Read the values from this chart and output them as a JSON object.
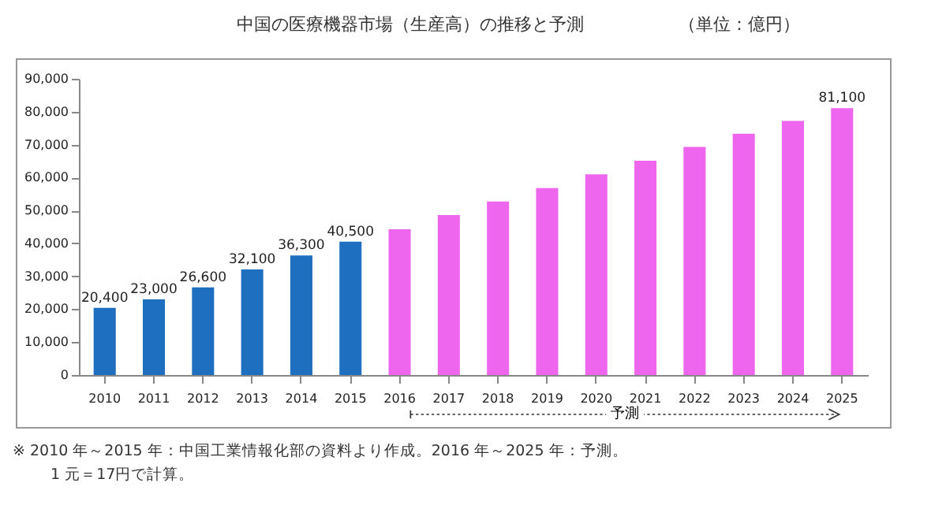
{
  "chart_data": {
    "type": "bar",
    "title": "中国の医療機器市場（生産高）の推移と予測",
    "subtitle": "（単位：億円）",
    "categories": [
      "2010",
      "2011",
      "2012",
      "2013",
      "2014",
      "2015",
      "2016",
      "2017",
      "2018",
      "2019",
      "2020",
      "2021",
      "2022",
      "2023",
      "2024",
      "2025"
    ],
    "values": [
      20400,
      23000,
      26600,
      32100,
      36300,
      40500,
      44300,
      48600,
      52700,
      56800,
      61000,
      65100,
      69300,
      73300,
      77200,
      81100
    ],
    "value_labels": [
      "20,400",
      "23,000",
      "26,600",
      "32,100",
      "36,300",
      "40,500",
      null,
      null,
      null,
      null,
      null,
      null,
      null,
      null,
      null,
      "81,100"
    ],
    "colors": [
      "#1f6fc0",
      "#1f6fc0",
      "#1f6fc0",
      "#1f6fc0",
      "#1f6fc0",
      "#1f6fc0",
      "#ee66ee",
      "#ee66ee",
      "#ee66ee",
      "#ee66ee",
      "#ee66ee",
      "#ee66ee",
      "#ee66ee",
      "#ee66ee",
      "#ee66ee",
      "#ee66ee"
    ],
    "ylim": [
      0,
      90000
    ],
    "yticks": [
      0,
      {
        "value": 10000,
        "label": "10,000"
      },
      {
        "value": 20000,
        "label": "20,000"
      },
      {
        "value": 30000,
        "label": "30,000"
      },
      {
        "value": 40000,
        "label": "40,000"
      },
      {
        "value": 50000,
        "label": "50,000"
      },
      {
        "value": 60000,
        "label": "60,000"
      },
      {
        "value": 70000,
        "label": "70,000"
      },
      {
        "value": 80000,
        "label": "80,000"
      },
      {
        "value": 90000,
        "label": "90,000"
      }
    ],
    "grid": false,
    "annotations": [
      "予測",
      "※ 2010 年～2015 年：中国工業情報化部の資料より作成。2016 年～2025 年：予測。",
      "1 元＝17円で計算。"
    ]
  }
}
